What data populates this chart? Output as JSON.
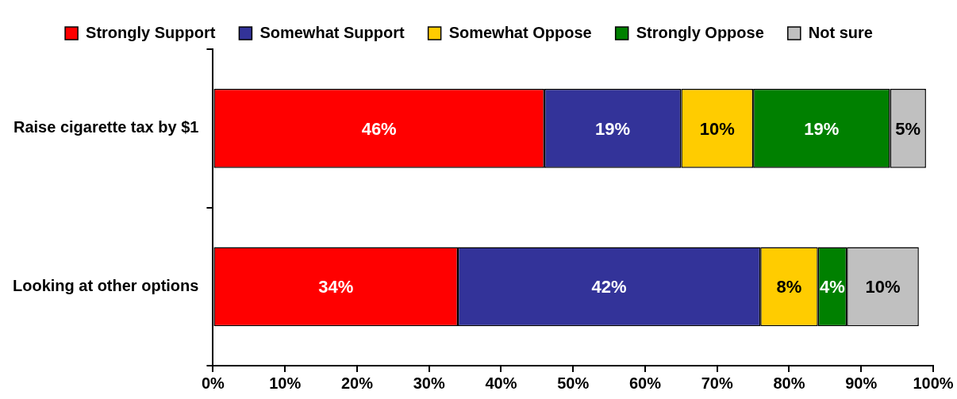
{
  "chart_data": {
    "type": "bar",
    "orientation": "horizontal",
    "stacked": true,
    "categories": [
      "Raise cigarette tax by $1",
      "Looking at other options"
    ],
    "series": [
      {
        "name": "Strongly Support",
        "color": "#ff0000",
        "values": [
          46,
          34
        ],
        "value_labels": [
          "46%",
          "34%"
        ]
      },
      {
        "name": "Somewhat Support",
        "color": "#333399",
        "values": [
          19,
          42
        ],
        "value_labels": [
          "19%",
          "42%"
        ]
      },
      {
        "name": "Somewhat Oppose",
        "color": "#ffcc00",
        "values": [
          10,
          8
        ],
        "value_labels": [
          "10%",
          "8%"
        ]
      },
      {
        "name": "Strongly Oppose",
        "color": "#008000",
        "values": [
          19,
          4
        ],
        "value_labels": [
          "19%",
          "4%"
        ]
      },
      {
        "name": "Not sure",
        "color": "#c0c0c0",
        "values": [
          5,
          10
        ],
        "value_labels": [
          "5%",
          "10%"
        ]
      }
    ],
    "xlim": [
      0,
      100
    ],
    "xticks": [
      {
        "value": 0,
        "label": "0%"
      },
      {
        "value": 10,
        "label": "10%"
      },
      {
        "value": 20,
        "label": "20%"
      },
      {
        "value": 30,
        "label": "30%"
      },
      {
        "value": 40,
        "label": "40%"
      },
      {
        "value": 50,
        "label": "50%"
      },
      {
        "value": 60,
        "label": "60%"
      },
      {
        "value": 70,
        "label": "70%"
      },
      {
        "value": 80,
        "label": "80%"
      },
      {
        "value": 90,
        "label": "90%"
      },
      {
        "value": 100,
        "label": "100%"
      }
    ],
    "legend": "top",
    "grid": false
  }
}
